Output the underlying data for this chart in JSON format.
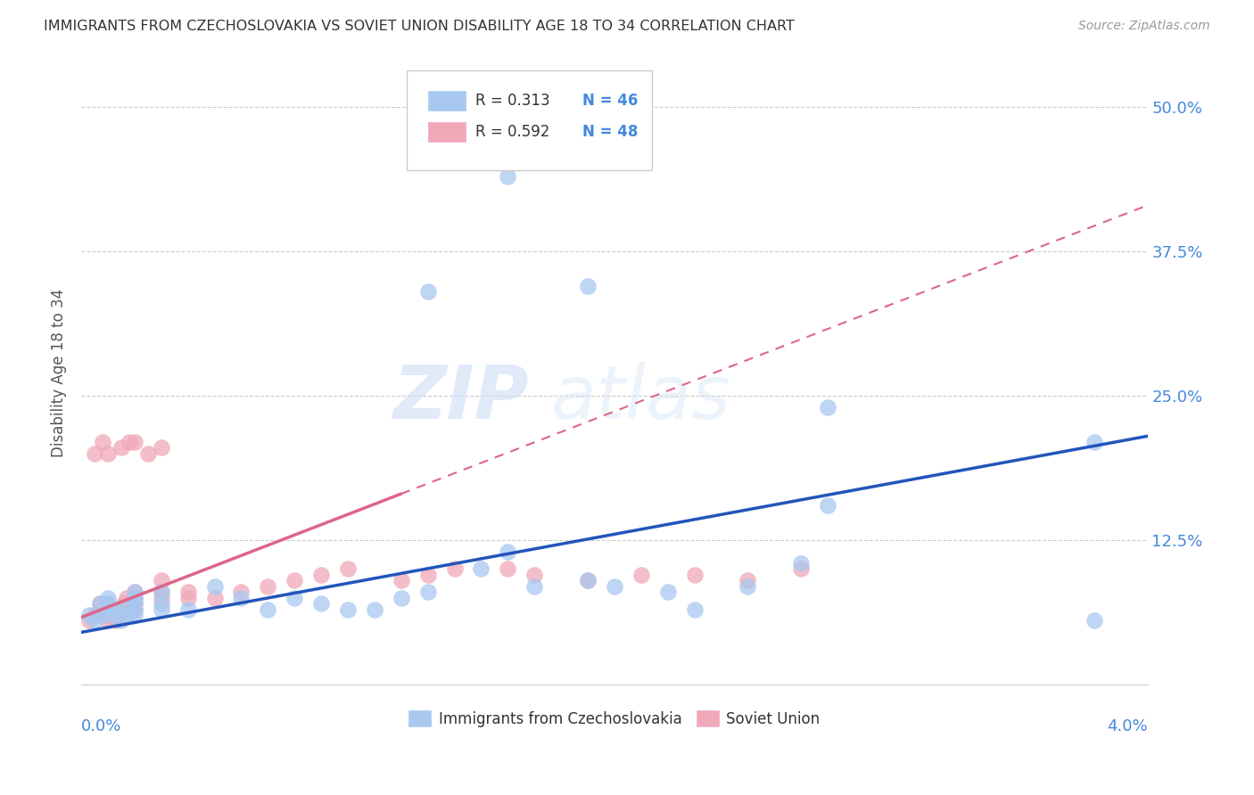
{
  "title": "IMMIGRANTS FROM CZECHOSLOVAKIA VS SOVIET UNION DISABILITY AGE 18 TO 34 CORRELATION CHART",
  "source": "Source: ZipAtlas.com",
  "ylabel": "Disability Age 18 to 34",
  "ytick_vals": [
    0.125,
    0.25,
    0.375,
    0.5
  ],
  "ytick_labels": [
    "12.5%",
    "25.0%",
    "37.5%",
    "50.0%"
  ],
  "xlim": [
    0.0,
    0.04
  ],
  "ylim": [
    0.0,
    0.54
  ],
  "legend_r1": "R = 0.313",
  "legend_n1": "N = 46",
  "legend_r2": "R = 0.592",
  "legend_n2": "N = 48",
  "color_czech": "#a8c8f0",
  "color_soviet": "#f0a8b8",
  "color_czech_line": "#2255bb",
  "color_soviet_line": "#dd6688",
  "color_axis_label": "#4488dd",
  "color_title": "#333333",
  "color_source": "#999999",
  "background": "#ffffff",
  "watermark": "ZIPatlas",
  "czech_x": [
    0.0003,
    0.0005,
    0.0007,
    0.0008,
    0.001,
    0.001,
    0.001,
    0.0012,
    0.0013,
    0.0015,
    0.0016,
    0.0017,
    0.002,
    0.002,
    0.002,
    0.002,
    0.002,
    0.003,
    0.003,
    0.003,
    0.004,
    0.005,
    0.006,
    0.007,
    0.008,
    0.009,
    0.01,
    0.011,
    0.012,
    0.013,
    0.015,
    0.016,
    0.017,
    0.019,
    0.02,
    0.022,
    0.023,
    0.025,
    0.027,
    0.028,
    0.013,
    0.016,
    0.019,
    0.028,
    0.038,
    0.038
  ],
  "czech_y": [
    0.06,
    0.055,
    0.07,
    0.06,
    0.07,
    0.075,
    0.065,
    0.06,
    0.065,
    0.055,
    0.065,
    0.06,
    0.065,
    0.07,
    0.075,
    0.06,
    0.08,
    0.065,
    0.07,
    0.08,
    0.065,
    0.085,
    0.075,
    0.065,
    0.075,
    0.07,
    0.065,
    0.065,
    0.075,
    0.08,
    0.1,
    0.115,
    0.085,
    0.09,
    0.085,
    0.08,
    0.065,
    0.085,
    0.105,
    0.155,
    0.34,
    0.44,
    0.345,
    0.24,
    0.055,
    0.21
  ],
  "soviet_x": [
    0.0003,
    0.0005,
    0.0006,
    0.0007,
    0.0008,
    0.001,
    0.001,
    0.001,
    0.001,
    0.0012,
    0.0013,
    0.0014,
    0.0015,
    0.0016,
    0.0017,
    0.002,
    0.002,
    0.002,
    0.002,
    0.003,
    0.003,
    0.003,
    0.004,
    0.004,
    0.005,
    0.006,
    0.007,
    0.008,
    0.009,
    0.01,
    0.012,
    0.013,
    0.014,
    0.016,
    0.017,
    0.019,
    0.021,
    0.023,
    0.025,
    0.027,
    0.0005,
    0.0008,
    0.001,
    0.0015,
    0.0018,
    0.002,
    0.0025,
    0.003
  ],
  "soviet_y": [
    0.055,
    0.06,
    0.06,
    0.07,
    0.065,
    0.055,
    0.06,
    0.065,
    0.07,
    0.065,
    0.055,
    0.06,
    0.065,
    0.07,
    0.075,
    0.065,
    0.07,
    0.075,
    0.08,
    0.075,
    0.08,
    0.09,
    0.075,
    0.08,
    0.075,
    0.08,
    0.085,
    0.09,
    0.095,
    0.1,
    0.09,
    0.095,
    0.1,
    0.1,
    0.095,
    0.09,
    0.095,
    0.095,
    0.09,
    0.1,
    0.2,
    0.21,
    0.2,
    0.205,
    0.21,
    0.21,
    0.2,
    0.205
  ],
  "trend_czech_x0": 0.0,
  "trend_czech_y0": 0.045,
  "trend_czech_x1": 0.04,
  "trend_czech_y1": 0.215,
  "trend_soviet_solid_x0": 0.0,
  "trend_soviet_solid_y0": 0.058,
  "trend_soviet_solid_x1": 0.012,
  "trend_soviet_solid_y1": 0.165,
  "trend_soviet_dash_x0": 0.012,
  "trend_soviet_dash_y0": 0.165,
  "trend_soviet_dash_x1": 0.04,
  "trend_soviet_dash_y1": 0.415
}
